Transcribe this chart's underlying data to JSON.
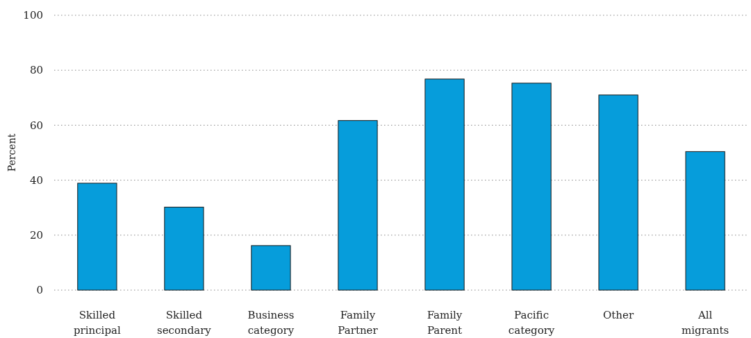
{
  "chart_data": {
    "type": "bar",
    "ylabel": "Percent",
    "categories": [
      "Skilled\nprincipal",
      "Skilled\nsecondary",
      "Business\ncategory",
      "Family\nPartner",
      "Family\nParent",
      "Pacific\ncategory",
      "Other",
      "All\nmigrants"
    ],
    "values": [
      38.9,
      30.2,
      16.2,
      61.7,
      76.8,
      75.3,
      71,
      50.4
    ],
    "color": "#069ddb",
    "ylim": [
      0,
      100
    ],
    "yticks": [
      0,
      20,
      40,
      60,
      80,
      100
    ],
    "grid": "y"
  }
}
